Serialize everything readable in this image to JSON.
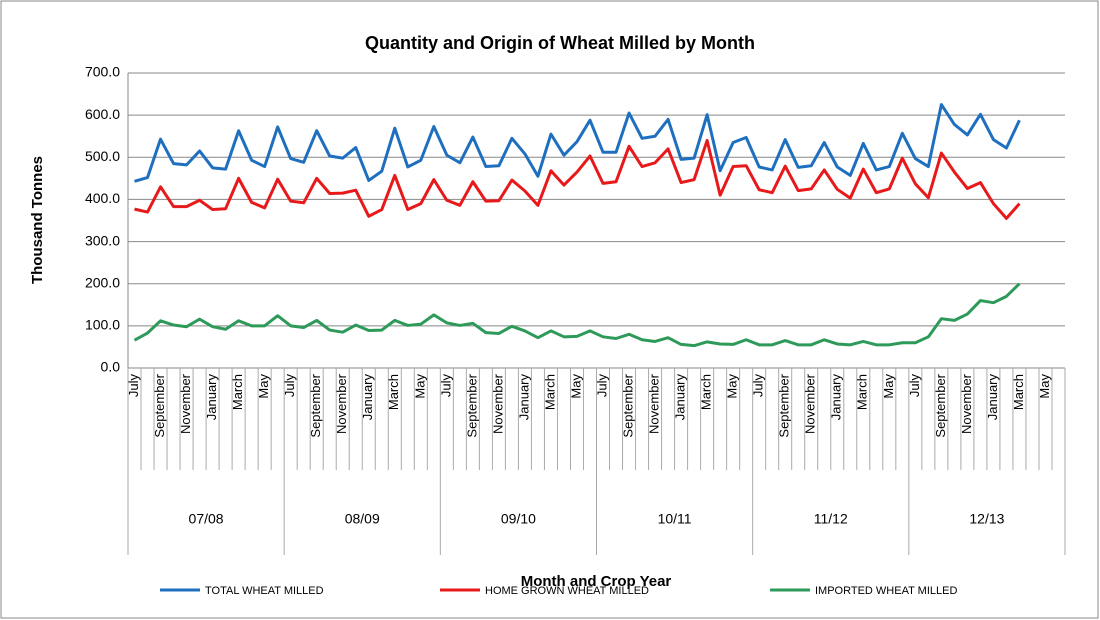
{
  "chart_data": {
    "type": "line",
    "title": "Quantity and Origin of Wheat Milled by Month",
    "y_label": "Thousand Tonnes",
    "x_label": "Month and Crop Year",
    "groups": [
      "07/08",
      "08/09",
      "09/10",
      "10/11",
      "11/12",
      "12/13"
    ],
    "categories": [
      "July",
      null,
      "September",
      null,
      "November",
      null,
      "January",
      null,
      "March",
      null,
      "May",
      null,
      "July",
      null,
      "September",
      null,
      "November",
      null,
      "January",
      null,
      "March",
      null,
      "May",
      null,
      "July",
      null,
      "September",
      null,
      "November",
      null,
      "January",
      null,
      "March",
      null,
      "May",
      null,
      "July",
      null,
      "September",
      null,
      "November",
      null,
      "January",
      null,
      "March",
      null,
      "May",
      null,
      "July",
      null,
      "September",
      null,
      "November",
      null,
      "January",
      null,
      "March",
      null,
      "May",
      null,
      "July",
      null,
      "September",
      null,
      "November",
      null,
      "January",
      null,
      "March",
      null,
      "May",
      null
    ],
    "series": [
      {
        "name": "TOTAL WHEAT MILLED",
        "color": "#1f6fbf",
        "values": [
          443,
          452,
          543,
          485,
          482,
          515,
          475,
          472,
          563,
          493,
          478,
          572,
          497,
          488,
          563,
          503,
          498,
          523,
          445,
          467,
          569,
          477,
          493,
          573,
          505,
          487,
          548,
          478,
          480,
          545,
          508,
          455,
          555,
          505,
          537,
          588,
          512,
          512,
          605,
          545,
          550,
          590,
          495,
          498,
          601,
          468,
          535,
          547,
          477,
          470,
          542,
          476,
          480,
          535,
          477,
          457,
          533,
          470,
          478,
          557,
          497,
          478,
          625,
          578,
          553,
          602,
          542,
          522,
          588,
          null,
          null,
          null
        ]
      },
      {
        "name": "HOME GROWN WHEAT MILLED",
        "color": "#e8191b",
        "values": [
          377,
          370,
          430,
          383,
          383,
          398,
          376,
          378,
          450,
          393,
          380,
          448,
          396,
          392,
          450,
          414,
          415,
          422,
          360,
          376,
          457,
          376,
          390,
          447,
          398,
          386,
          442,
          396,
          397,
          446,
          420,
          386,
          468,
          434,
          465,
          503,
          438,
          442,
          526,
          478,
          487,
          520,
          440,
          447,
          540,
          410,
          478,
          480,
          423,
          416,
          479,
          421,
          425,
          470,
          424,
          403,
          472,
          416,
          425,
          498,
          437,
          404,
          510,
          465,
          426,
          440,
          390,
          355,
          390,
          null,
          null,
          null
        ]
      },
      {
        "name": "IMPORTED WHEAT MILLED",
        "color": "#2e9a5a",
        "values": [
          66,
          83,
          112,
          102,
          98,
          116,
          98,
          92,
          112,
          100,
          100,
          124,
          100,
          96,
          113,
          90,
          85,
          102,
          89,
          90,
          113,
          101,
          104,
          126,
          107,
          101,
          106,
          84,
          82,
          99,
          88,
          72,
          88,
          74,
          75,
          88,
          74,
          70,
          80,
          67,
          63,
          72,
          56,
          53,
          62,
          57,
          56,
          67,
          55,
          55,
          65,
          55,
          55,
          67,
          57,
          55,
          63,
          55,
          55,
          60,
          60,
          74,
          117,
          113,
          128,
          160,
          155,
          170,
          200,
          null,
          null,
          null
        ]
      }
    ],
    "ylim": [
      0,
      700
    ],
    "yticks": [
      {
        "value": 0,
        "label": "0.0"
      },
      {
        "value": 100,
        "label": "100.0"
      },
      {
        "value": 200,
        "label": "200.0"
      },
      {
        "value": 300,
        "label": "300.0"
      },
      {
        "value": 400,
        "label": "400.0"
      },
      {
        "value": 500,
        "label": "500.0"
      },
      {
        "value": 600,
        "label": "600.0"
      },
      {
        "value": 700,
        "label": "700.0"
      }
    ],
    "grid": true,
    "legend": "bottom"
  }
}
